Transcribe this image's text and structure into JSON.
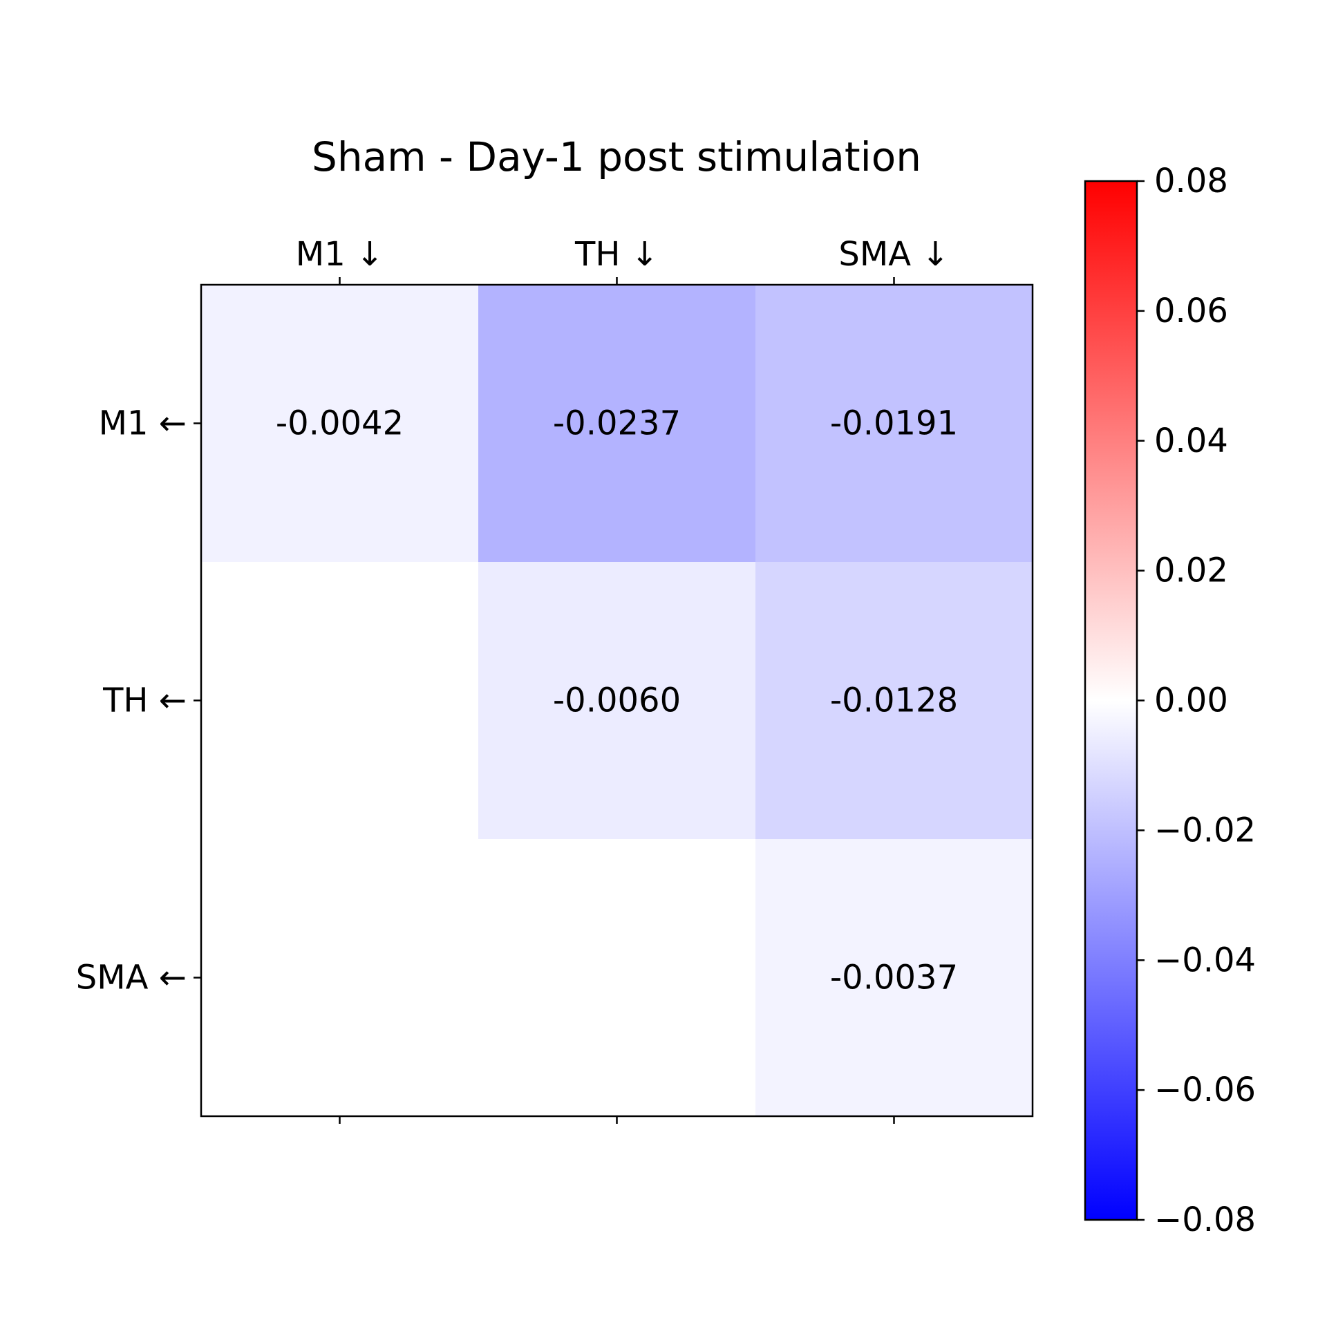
{
  "chart_data": {
    "type": "heatmap",
    "title": "Sham - Day-1 post stimulation",
    "x_tick_labels": [
      "M1 ↓",
      "TH ↓",
      "SMA ↓"
    ],
    "y_tick_labels": [
      "M1 ←",
      "TH ←",
      "SMA ←"
    ],
    "matrix": [
      [
        -0.0042,
        -0.0237,
        -0.0191
      ],
      [
        0.0,
        -0.006,
        -0.0128
      ],
      [
        0.0,
        0.0,
        -0.0037
      ]
    ],
    "cell_labels": [
      [
        "-0.0042",
        "-0.0237",
        "-0.0191"
      ],
      [
        "",
        "-0.0060",
        "-0.0128"
      ],
      [
        "",
        "",
        "-0.0037"
      ]
    ],
    "colormap": "bwr",
    "colorbar": {
      "vmin": -0.08,
      "vmax": 0.08,
      "ticks": [
        0.08,
        0.06,
        0.04,
        0.02,
        0.0,
        -0.02,
        -0.04,
        -0.06,
        -0.08
      ],
      "tick_labels": [
        "0.08",
        "0.06",
        "0.04",
        "0.02",
        "0.00",
        "−0.02",
        "−0.04",
        "−0.06",
        "−0.08"
      ]
    },
    "colors": {
      "low": "#0000ff",
      "mid": "#ffffff",
      "high": "#ff0000"
    },
    "grid": false
  }
}
